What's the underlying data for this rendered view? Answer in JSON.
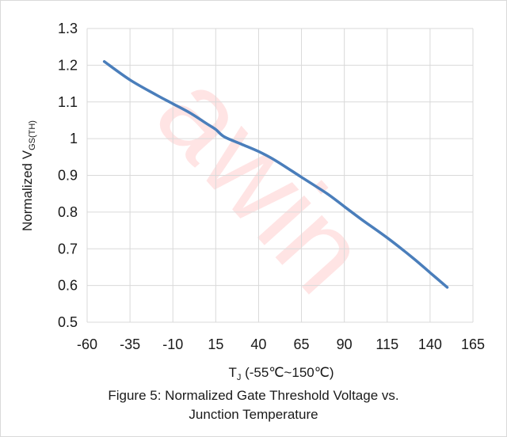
{
  "chart_data": {
    "type": "line",
    "x": [
      -50,
      -35,
      -20,
      -10,
      0,
      10,
      15,
      20,
      30,
      40,
      50,
      65,
      80,
      90,
      100,
      115,
      130,
      140,
      150
    ],
    "series": [
      {
        "values": [
          1.21,
          1.16,
          1.12,
          1.095,
          1.07,
          1.04,
          1.025,
          1.005,
          0.985,
          0.965,
          0.94,
          0.895,
          0.85,
          0.815,
          0.78,
          0.73,
          0.675,
          0.635,
          0.595
        ],
        "color": "#4a7ebb"
      }
    ],
    "xticks": [
      -60,
      -35,
      -10,
      15,
      40,
      65,
      90,
      115,
      140,
      165
    ],
    "xtick_labels": [
      "-60",
      "-35",
      "-10",
      "15",
      "40",
      "65",
      "90",
      "115",
      "140",
      "165"
    ],
    "yticks": [
      0.5,
      0.6,
      0.7,
      0.8,
      0.9,
      1.0,
      1.1,
      1.2,
      1.3
    ],
    "ytick_labels": [
      "0.5",
      "0.6",
      "0.7",
      "0.8",
      "0.9",
      "1",
      "1.1",
      "1.2",
      "1.3"
    ],
    "xlim": [
      -60,
      165
    ],
    "ylim": [
      0.5,
      1.3
    ],
    "grid": true,
    "ylabel": {
      "main": "Normalized V",
      "sub": "GS(TH)"
    },
    "xlabel": {
      "main": "T",
      "sub": "J",
      "rest": " (-55℃~150℃)"
    },
    "title_lines": [
      "Figure 5: Normalized Gate Threshold Voltage vs.",
      "Junction Temperature"
    ]
  },
  "watermark": {
    "text": "awin"
  }
}
